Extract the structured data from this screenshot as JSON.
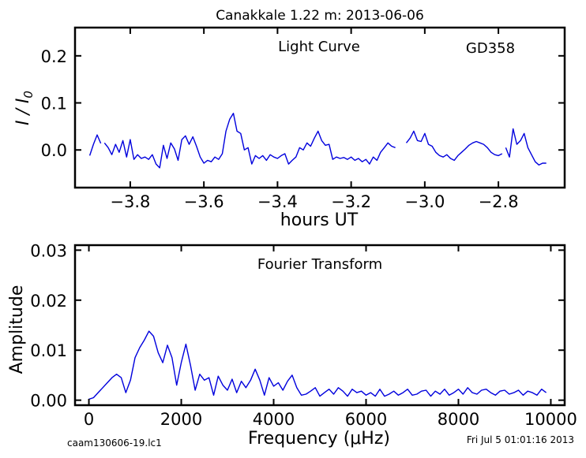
{
  "figure": {
    "title": "Canakkale 1.22 m:  2013-06-06",
    "footer_left": "caam130606-19.lc1",
    "footer_right": "Fri Jul  5 01:01:16 2013"
  },
  "chart_data": [
    {
      "type": "line",
      "annotation_left": "Light Curve",
      "annotation_right": "GD358",
      "ylabel": "I / I0",
      "xlabel": "hours UT",
      "xlim": [
        -3.95,
        -2.62
      ],
      "ylim": [
        -0.08,
        0.26
      ],
      "xticks": [
        -3.8,
        -3.6,
        -3.4,
        -3.2,
        -3.0,
        -2.8
      ],
      "xtick_labels": [
        "−3.8",
        "−3.6",
        "−3.4",
        "−3.2",
        "−3.0",
        "−2.8"
      ],
      "yticks": [
        0.0,
        0.1,
        0.2
      ],
      "ytick_labels": [
        "0.0",
        "0.1",
        "0.2"
      ],
      "color": "#0000dd",
      "segments": [
        {
          "x": [
            -3.91,
            -3.9,
            -3.89,
            -3.88
          ],
          "y": [
            -0.012,
            0.012,
            0.032,
            0.014
          ]
        },
        {
          "x": [
            -3.87,
            -3.86,
            -3.85,
            -3.84,
            -3.83,
            -3.82,
            -3.81,
            -3.8,
            -3.79,
            -3.78,
            -3.77,
            -3.76,
            -3.75,
            -3.74,
            -3.73,
            -3.72,
            -3.71,
            -3.7,
            -3.69,
            -3.68,
            -3.67,
            -3.66,
            -3.65,
            -3.64,
            -3.63,
            -3.62,
            -3.61,
            -3.6,
            -3.59,
            -3.58,
            -3.57,
            -3.56,
            -3.55,
            -3.54,
            -3.53,
            -3.52,
            -3.51,
            -3.5,
            -3.49,
            -3.48,
            -3.47,
            -3.46,
            -3.45,
            -3.44,
            -3.43,
            -3.42,
            -3.41,
            -3.4,
            -3.39,
            -3.38,
            -3.37,
            -3.36,
            -3.35,
            -3.34,
            -3.33,
            -3.32,
            -3.31,
            -3.3,
            -3.29,
            -3.28,
            -3.27,
            -3.26,
            -3.25,
            -3.24,
            -3.23,
            -3.22,
            -3.21,
            -3.2,
            -3.19,
            -3.18,
            -3.17,
            -3.16,
            -3.15,
            -3.14,
            -3.13,
            -3.12,
            -3.11,
            -3.1,
            -3.09,
            -3.08
          ],
          "y": [
            0.015,
            0.005,
            -0.01,
            0.012,
            -0.005,
            0.02,
            -0.015,
            0.022,
            -0.02,
            -0.01,
            -0.018,
            -0.015,
            -0.02,
            -0.01,
            -0.03,
            -0.038,
            0.01,
            -0.018,
            0.015,
            0.002,
            -0.022,
            0.022,
            0.03,
            0.012,
            0.028,
            0.008,
            -0.015,
            -0.028,
            -0.022,
            -0.025,
            -0.015,
            -0.02,
            -0.008,
            0.04,
            0.065,
            0.078,
            0.04,
            0.035,
            0.0,
            0.005,
            -0.03,
            -0.012,
            -0.018,
            -0.012,
            -0.022,
            -0.01,
            -0.015,
            -0.018,
            -0.012,
            -0.008,
            -0.03,
            -0.022,
            -0.015,
            0.005,
            0.0,
            0.015,
            0.008,
            0.025,
            0.04,
            0.02,
            0.01,
            0.012,
            -0.02,
            -0.015,
            -0.018,
            -0.016,
            -0.02,
            -0.015,
            -0.022,
            -0.018,
            -0.025,
            -0.02,
            -0.03,
            -0.015,
            -0.022,
            -0.005,
            0.005,
            0.015,
            0.008,
            0.005
          ]
        },
        {
          "x": [
            -3.05,
            -3.04,
            -3.03,
            -3.02,
            -3.01,
            -3.0,
            -2.99,
            -2.98,
            -2.97,
            -2.96,
            -2.95,
            -2.94,
            -2.93,
            -2.92,
            -2.91,
            -2.9,
            -2.89,
            -2.88,
            -2.87,
            -2.86,
            -2.85,
            -2.84,
            -2.83,
            -2.82,
            -2.81,
            -2.8,
            -2.79
          ],
          "y": [
            0.015,
            0.025,
            0.04,
            0.02,
            0.018,
            0.035,
            0.012,
            0.008,
            -0.005,
            -0.012,
            -0.015,
            -0.01,
            -0.018,
            -0.022,
            -0.012,
            -0.005,
            0.002,
            0.01,
            0.015,
            0.018,
            0.015,
            0.012,
            0.005,
            -0.005,
            -0.01,
            -0.012,
            -0.008
          ]
        },
        {
          "x": [
            -2.78,
            -2.77,
            -2.76,
            -2.75,
            -2.74,
            -2.73,
            -2.72,
            -2.71,
            -2.7,
            -2.69,
            -2.68,
            -2.67
          ],
          "y": [
            0.005,
            -0.015,
            0.045,
            0.012,
            0.02,
            0.035,
            0.005,
            -0.01,
            -0.025,
            -0.032,
            -0.028,
            -0.028
          ]
        }
      ]
    },
    {
      "type": "line",
      "annotation": "Fourier Transform",
      "ylabel": "Amplitude",
      "xlabel": "Frequency (μHz)",
      "xlim": [
        -300,
        10300
      ],
      "ylim": [
        -0.001,
        0.031
      ],
      "xticks": [
        0,
        2000,
        4000,
        6000,
        8000,
        10000
      ],
      "xtick_labels": [
        "0",
        "2000",
        "4000",
        "6000",
        "8000",
        "10000"
      ],
      "yticks": [
        0.0,
        0.01,
        0.02,
        0.03
      ],
      "ytick_labels": [
        "0.00",
        "0.01",
        "0.02",
        "0.03"
      ],
      "color": "#0000dd",
      "x": [
        0,
        100,
        200,
        300,
        400,
        500,
        600,
        700,
        800,
        900,
        1000,
        1100,
        1200,
        1300,
        1400,
        1500,
        1600,
        1700,
        1800,
        1900,
        2000,
        2100,
        2200,
        2300,
        2400,
        2500,
        2600,
        2700,
        2800,
        2900,
        3000,
        3100,
        3200,
        3300,
        3400,
        3500,
        3600,
        3700,
        3800,
        3900,
        4000,
        4100,
        4200,
        4300,
        4400,
        4500,
        4600,
        4700,
        4800,
        4900,
        5000,
        5100,
        5200,
        5300,
        5400,
        5500,
        5600,
        5700,
        5800,
        5900,
        6000,
        6100,
        6200,
        6300,
        6400,
        6500,
        6600,
        6700,
        6800,
        6900,
        7000,
        7100,
        7200,
        7300,
        7400,
        7500,
        7600,
        7700,
        7800,
        7900,
        8000,
        8100,
        8200,
        8300,
        8400,
        8500,
        8600,
        8700,
        8800,
        8900,
        9000,
        9100,
        9200,
        9300,
        9400,
        9500,
        9600,
        9700,
        9800,
        9900
      ],
      "y": [
        0.0002,
        0.0005,
        0.0015,
        0.0025,
        0.0035,
        0.0045,
        0.0052,
        0.0045,
        0.0015,
        0.004,
        0.0085,
        0.0105,
        0.012,
        0.0138,
        0.0128,
        0.0095,
        0.0075,
        0.011,
        0.0085,
        0.003,
        0.0075,
        0.0112,
        0.007,
        0.002,
        0.0052,
        0.004,
        0.0045,
        0.001,
        0.0048,
        0.003,
        0.002,
        0.0042,
        0.0015,
        0.0038,
        0.0025,
        0.004,
        0.0062,
        0.004,
        0.001,
        0.0045,
        0.0028,
        0.0035,
        0.002,
        0.0038,
        0.005,
        0.0025,
        0.001,
        0.0012,
        0.0018,
        0.0025,
        0.0008,
        0.0015,
        0.0022,
        0.0012,
        0.0025,
        0.0018,
        0.0008,
        0.0022,
        0.0015,
        0.0018,
        0.001,
        0.0015,
        0.0008,
        0.0022,
        0.0008,
        0.0012,
        0.0018,
        0.001,
        0.0015,
        0.0022,
        0.001,
        0.0012,
        0.0018,
        0.002,
        0.0008,
        0.0018,
        0.0012,
        0.0022,
        0.001,
        0.0015,
        0.0022,
        0.0012,
        0.0025,
        0.0015,
        0.0012,
        0.002,
        0.0022,
        0.0015,
        0.001,
        0.0018,
        0.002,
        0.0012,
        0.0015,
        0.002,
        0.001,
        0.0018,
        0.0015,
        0.001,
        0.0022,
        0.0015
      ]
    }
  ]
}
